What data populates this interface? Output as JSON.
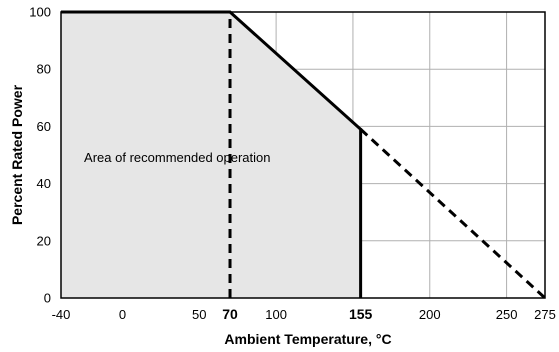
{
  "chart_data": {
    "type": "line",
    "title": "",
    "xlabel": "Ambient Temperature, °C",
    "ylabel": "Percent Rated Power",
    "xlim": [
      -40,
      275
    ],
    "ylim": [
      0,
      100
    ],
    "grid": true,
    "x_ticks": [
      {
        "value": -40,
        "label": "-40",
        "bold": false
      },
      {
        "value": 0,
        "label": "0",
        "bold": false
      },
      {
        "value": 50,
        "label": "50",
        "bold": false
      },
      {
        "value": 70,
        "label": "70",
        "bold": true
      },
      {
        "value": 100,
        "label": "100",
        "bold": false
      },
      {
        "value": 155,
        "label": "155",
        "bold": true
      },
      {
        "value": 200,
        "label": "200",
        "bold": false
      },
      {
        "value": 250,
        "label": "250",
        "bold": false
      },
      {
        "value": 275,
        "label": "275",
        "bold": false
      }
    ],
    "x_gridlines": [
      0,
      50,
      100,
      150,
      200,
      250
    ],
    "y_ticks": [
      0,
      20,
      40,
      60,
      80,
      100
    ],
    "series": [
      {
        "style": "solid",
        "x": [
          -40,
          70,
          155,
          155
        ],
        "y": [
          100,
          100,
          59,
          0
        ]
      },
      {
        "style": "dashed",
        "x": [
          155,
          275
        ],
        "y": [
          59,
          0
        ]
      }
    ],
    "reference_lines": [
      {
        "style": "dashed",
        "x": [
          70,
          70
        ],
        "y": [
          0,
          100
        ]
      }
    ],
    "shaded_region": {
      "x": [
        -40,
        70,
        155,
        155,
        -40
      ],
      "y": [
        100,
        100,
        59,
        0,
        0
      ],
      "color": "#e6e6e6"
    },
    "annotation": {
      "text": "Area of recommended operation",
      "x": -25,
      "y": 49
    },
    "colors": {
      "line": "#000000",
      "grid": "#b0b0b0",
      "fill": "#e6e6e6"
    }
  }
}
